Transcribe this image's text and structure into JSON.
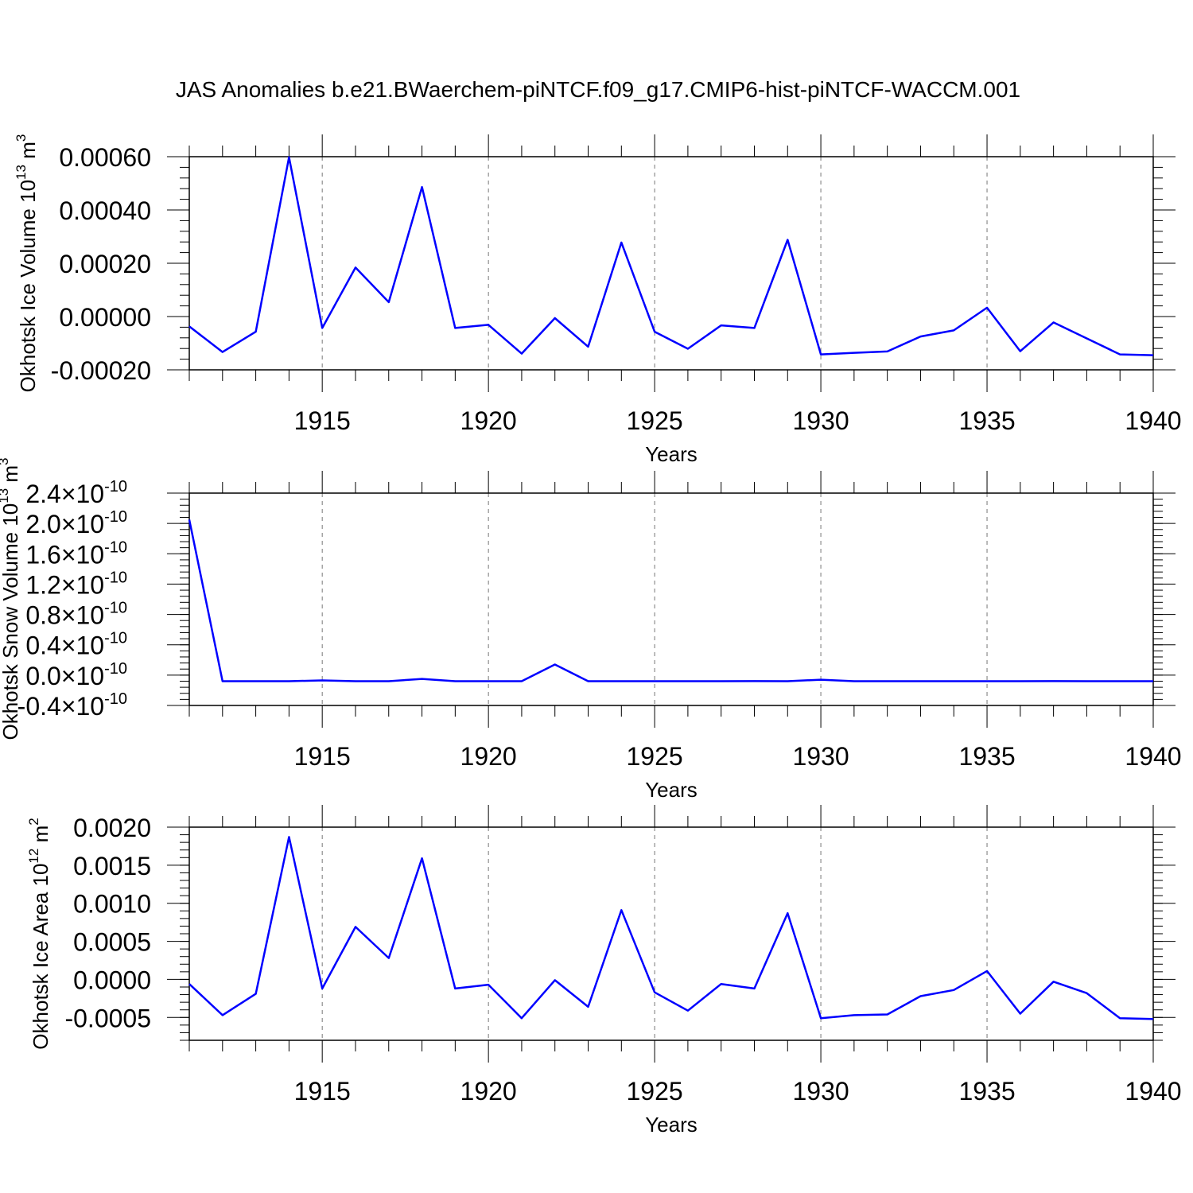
{
  "title": "JAS Anomalies b.e21.BWaerchem-piNTCF.f09_g17.CMIP6-hist-piNTCF-WACCM.001",
  "colors": {
    "line": "#0000ff",
    "axis": "#000000",
    "grid": "#777777",
    "background": "#ffffff"
  },
  "chart_data": [
    {
      "type": "line",
      "ylabel_prefix": "Okhotsk Ice Volume 10",
      "ylabel_exp1": "13",
      "ylabel_unit": " m",
      "ylabel_exp2": "3",
      "xlabel": "Years",
      "xlim": [
        1911,
        1940
      ],
      "ylim": [
        -0.0002,
        0.0006
      ],
      "xticks": [
        "1915",
        "1920",
        "1925",
        "1930",
        "1935",
        "1940"
      ],
      "xtick_values": [
        1915,
        1920,
        1925,
        1930,
        1935,
        1940
      ],
      "yticks": [
        "0.00060",
        "0.00040",
        "0.00020",
        "0.00000",
        "-0.00020"
      ],
      "ytick_values": [
        0.0006,
        0.0004,
        0.0002,
        0.0,
        -0.0002
      ],
      "grid": "vertical dashed at major x ticks",
      "x": [
        1911,
        1912,
        1913,
        1914,
        1915,
        1916,
        1917,
        1918,
        1919,
        1920,
        1921,
        1922,
        1923,
        1924,
        1925,
        1926,
        1927,
        1928,
        1929,
        1930,
        1931,
        1932,
        1933,
        1934,
        1935,
        1936,
        1937,
        1938,
        1939,
        1940
      ],
      "values": [
        -3.7e-05,
        -0.000133,
        -5.7e-05,
        0.000598,
        -4.3e-05,
        0.000184,
        5.4e-05,
        0.000486,
        -4.3e-05,
        -3.1e-05,
        -0.000139,
        -6e-06,
        -0.000113,
        0.000278,
        -5.7e-05,
        -0.000121,
        -3.3e-05,
        -4.3e-05,
        0.000288,
        -0.000142,
        -0.000136,
        -0.000131,
        -7.5e-05,
        -5.2e-05,
        3.3e-05,
        -0.00013,
        -2.2e-05,
        -8.2e-05,
        -0.000142,
        -0.000145
      ]
    },
    {
      "type": "line",
      "ylabel_prefix": "Okhotsk Snow Volume 10",
      "ylabel_exp1": "13",
      "ylabel_unit": " m",
      "ylabel_exp2": "3",
      "xlabel": "Years",
      "xlim": [
        1911,
        1940
      ],
      "ylim": [
        -0.4,
        2.4
      ],
      "y_scale_note": "values in units of 10^-10",
      "tick_times": "×10",
      "tick_exp": "-10",
      "xticks": [
        "1915",
        "1920",
        "1925",
        "1930",
        "1935",
        "1940"
      ],
      "xtick_values": [
        1915,
        1920,
        1925,
        1930,
        1935,
        1940
      ],
      "yticks": [
        "2.4",
        "2.0",
        "1.6",
        "1.2",
        "0.8",
        "0.4",
        "0.0",
        "-0.4"
      ],
      "ytick_values": [
        2.4,
        2.0,
        1.6,
        1.2,
        0.8,
        0.4,
        0.0,
        -0.4
      ],
      "grid": "vertical dashed at major x ticks",
      "x": [
        1911,
        1912,
        1913,
        1914,
        1915,
        1916,
        1917,
        1918,
        1919,
        1920,
        1921,
        1922,
        1923,
        1924,
        1925,
        1926,
        1927,
        1928,
        1929,
        1930,
        1931,
        1932,
        1933,
        1934,
        1935,
        1936,
        1937,
        1938,
        1939,
        1940
      ],
      "values": [
        2.05,
        -0.08,
        -0.08,
        -0.08,
        -0.07,
        -0.08,
        -0.08,
        -0.05,
        -0.08,
        -0.08,
        -0.08,
        0.14,
        -0.08,
        -0.08,
        -0.08,
        -0.08,
        -0.08,
        -0.079,
        -0.08,
        -0.06,
        -0.08,
        -0.08,
        -0.08,
        -0.08,
        -0.08,
        -0.08,
        -0.079,
        -0.08,
        -0.08,
        -0.08
      ]
    },
    {
      "type": "line",
      "ylabel_prefix": "Okhotsk Ice Area 10",
      "ylabel_exp1": "12",
      "ylabel_unit": " m",
      "ylabel_exp2": "2",
      "xlabel": "Years",
      "xlim": [
        1911,
        1940
      ],
      "ylim": [
        -0.0008,
        0.002
      ],
      "xticks": [
        "1915",
        "1920",
        "1925",
        "1930",
        "1935",
        "1940"
      ],
      "xtick_values": [
        1915,
        1920,
        1925,
        1930,
        1935,
        1940
      ],
      "yticks": [
        "0.0020",
        "0.0015",
        "0.0010",
        "0.0005",
        "0.0000",
        "-0.0005"
      ],
      "ytick_values": [
        0.002,
        0.0015,
        0.001,
        0.0005,
        0.0,
        -0.0005
      ],
      "grid": "vertical dashed at major x ticks",
      "x": [
        1911,
        1912,
        1913,
        1914,
        1915,
        1916,
        1917,
        1918,
        1919,
        1920,
        1921,
        1922,
        1923,
        1924,
        1925,
        1926,
        1927,
        1928,
        1929,
        1930,
        1931,
        1932,
        1933,
        1934,
        1935,
        1936,
        1937,
        1938,
        1939,
        1940
      ],
      "values": [
        -6e-05,
        -0.00047,
        -0.00019,
        0.00187,
        -0.00012,
        0.00069,
        0.00028,
        0.00159,
        -0.00012,
        -7e-05,
        -0.00051,
        -1e-05,
        -0.00036,
        0.00091,
        -0.00017,
        -0.00041,
        -6e-05,
        -0.00012,
        0.00087,
        -0.00051,
        -0.00047,
        -0.00046,
        -0.00022,
        -0.00014,
        0.00011,
        -0.00045,
        -3e-05,
        -0.00018,
        -0.00051,
        -0.00052
      ]
    }
  ]
}
